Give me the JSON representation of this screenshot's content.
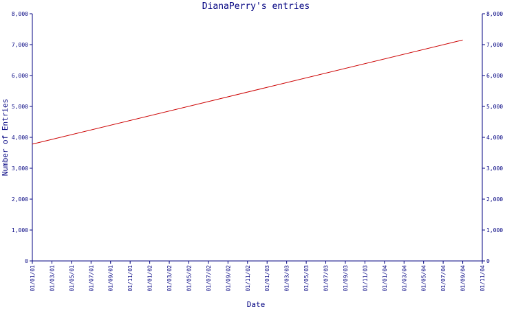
{
  "chart_data": {
    "type": "line",
    "title": "DianaPerry's entries",
    "xlabel": "Date",
    "ylabel": "Number of Entries",
    "x_tick_labels": [
      "01/01/01",
      "01/03/01",
      "01/05/01",
      "01/07/01",
      "01/09/01",
      "01/11/01",
      "01/01/02",
      "01/03/02",
      "01/05/02",
      "01/07/02",
      "01/09/02",
      "01/11/02",
      "01/01/03",
      "01/03/03",
      "01/05/03",
      "01/07/03",
      "01/09/03",
      "01/11/03",
      "01/01/04",
      "01/03/04",
      "01/05/04",
      "01/07/04",
      "01/09/04",
      "01/11/04"
    ],
    "y_tick_labels": [
      "0",
      "1,000",
      "2,000",
      "3,000",
      "4,000",
      "5,000",
      "6,000",
      "7,000",
      "8,000"
    ],
    "ylim": [
      0,
      8000
    ],
    "right_axis": true,
    "grid": false,
    "line_color": "#cc0000",
    "axis_color": "#000080",
    "series": [
      {
        "x": [
          "01/01/01",
          "01/09/04"
        ],
        "y": [
          3780,
          7150
        ]
      }
    ]
  }
}
